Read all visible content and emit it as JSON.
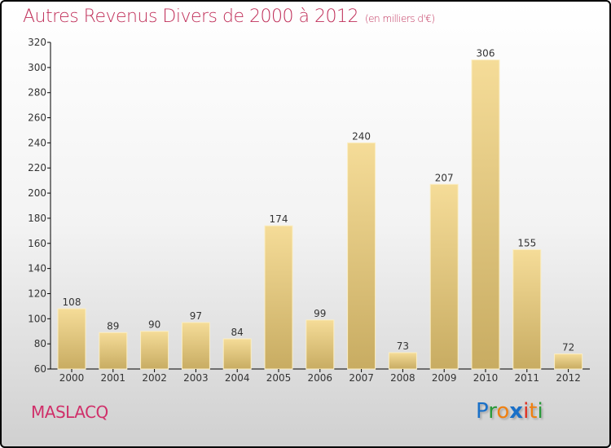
{
  "title": "Autres Revenus Divers de 2000 à 2012",
  "unit": "(en milliers d'€)",
  "town": "MASLACQ",
  "logo": "Proxiti",
  "colors": {
    "title": "#c0305a",
    "bar_top": "#f5dc98",
    "bar_bottom": "#c8ac62"
  },
  "chart_data": {
    "type": "bar",
    "title": "Autres Revenus Divers de 2000 à 2012",
    "xlabel": "",
    "ylabel": "",
    "categories": [
      "2000",
      "2001",
      "2002",
      "2003",
      "2004",
      "2005",
      "2006",
      "2007",
      "2008",
      "2009",
      "2010",
      "2011",
      "2012"
    ],
    "values": [
      108,
      89,
      90,
      97,
      84,
      174,
      99,
      240,
      73,
      207,
      306,
      155,
      72
    ],
    "ylim": [
      60,
      320
    ],
    "yticks": [
      60,
      80,
      100,
      120,
      140,
      160,
      180,
      200,
      220,
      240,
      260,
      280,
      300,
      320
    ],
    "grid": false
  }
}
